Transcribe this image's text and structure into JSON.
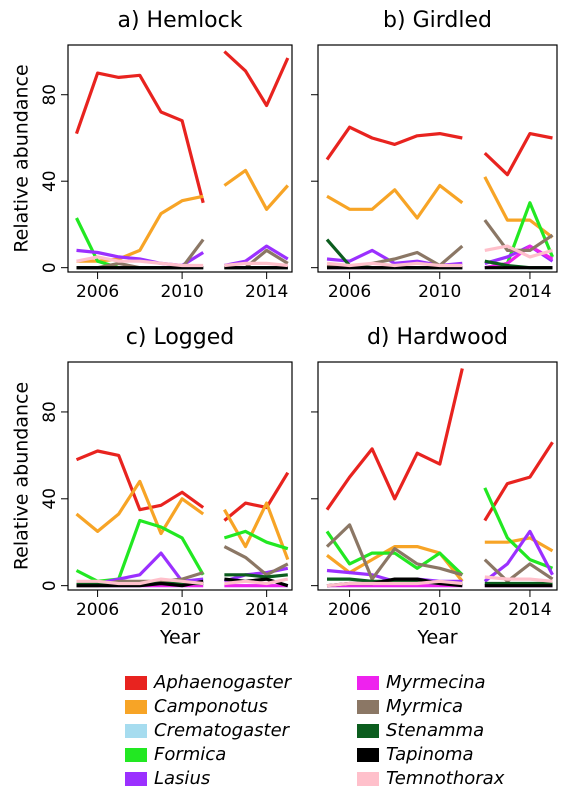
{
  "chart_data": {
    "type": "line",
    "ylabel": "Relative abundance",
    "xlabel": "Year",
    "x": [
      2005,
      2006,
      2007,
      2008,
      2009,
      2010,
      2011
    ],
    "x2": [
      2012,
      2013,
      2014,
      2015
    ],
    "xlim": [
      2004.6,
      2015.2
    ],
    "xticks": [
      2006,
      2010,
      2014
    ],
    "ylim": [
      -2,
      103
    ],
    "yticks": [
      0,
      40,
      80
    ],
    "series": [
      {
        "name": "Aphaenogaster",
        "color": "#e8231f"
      },
      {
        "name": "Camponotus",
        "color": "#f7a426"
      },
      {
        "name": "Crematogaster",
        "color": "#a6dcef"
      },
      {
        "name": "Formica",
        "color": "#22e822"
      },
      {
        "name": "Lasius",
        "color": "#9b30ff"
      },
      {
        "name": "Myrmecina",
        "color": "#ee22ee"
      },
      {
        "name": "Myrmica",
        "color": "#8b7765"
      },
      {
        "name": "Stenamma",
        "color": "#0b5d1e"
      },
      {
        "name": "Tapinoma",
        "color": "#000000"
      },
      {
        "name": "Temnothorax",
        "color": "#ffc0cb"
      }
    ],
    "panels": [
      {
        "title": "a) Hemlock",
        "values": [
          [
            62,
            90,
            88,
            89,
            72,
            68,
            30
          ],
          [
            3,
            3,
            4,
            8,
            25,
            31,
            33
          ],
          [
            0,
            0,
            0,
            0,
            0,
            0,
            0
          ],
          [
            23,
            3,
            0,
            0,
            0,
            0,
            0
          ],
          [
            8,
            7,
            5,
            4,
            2,
            1,
            7
          ],
          [
            0,
            0,
            0,
            0,
            0,
            0,
            0
          ],
          [
            0,
            0,
            2,
            0,
            0,
            0,
            13
          ],
          [
            0,
            0,
            0,
            0,
            0,
            0,
            0
          ],
          [
            0,
            0,
            0,
            0,
            0,
            0,
            0
          ],
          [
            3,
            5,
            3,
            3,
            2,
            1,
            1
          ]
        ],
        "values2": [
          [
            100,
            91,
            75,
            97
          ],
          [
            38,
            45,
            27,
            38
          ],
          [
            0,
            0,
            0,
            0
          ],
          [
            0,
            0,
            0,
            0
          ],
          [
            1,
            3,
            10,
            4
          ],
          [
            0,
            0,
            0,
            0
          ],
          [
            0,
            0,
            8,
            2
          ],
          [
            0,
            0,
            0,
            0
          ],
          [
            0,
            0,
            0,
            0
          ],
          [
            1,
            2,
            2,
            1
          ]
        ]
      },
      {
        "title": "b) Girdled",
        "values": [
          [
            50,
            65,
            60,
            57,
            61,
            62,
            60
          ],
          [
            33,
            27,
            27,
            36,
            23,
            38,
            30
          ],
          [
            0,
            0,
            0,
            0,
            0,
            0,
            0
          ],
          [
            0,
            0,
            0,
            0,
            0,
            0,
            0
          ],
          [
            4,
            3,
            8,
            2,
            3,
            1,
            2
          ],
          [
            0,
            0,
            0,
            0,
            0,
            0,
            0
          ],
          [
            1,
            0,
            2,
            4,
            7,
            1,
            10
          ],
          [
            13,
            1,
            0,
            0,
            0,
            0,
            0
          ],
          [
            0,
            0,
            0,
            0,
            0,
            0,
            0
          ],
          [
            2,
            1,
            2,
            1,
            2,
            1,
            1
          ]
        ],
        "values2": [
          [
            53,
            43,
            62,
            60
          ],
          [
            42,
            22,
            22,
            14
          ],
          [
            0,
            0,
            0,
            0
          ],
          [
            0,
            2,
            30,
            5
          ],
          [
            2,
            5,
            10,
            3
          ],
          [
            0,
            2,
            10,
            4
          ],
          [
            22,
            8,
            8,
            15
          ],
          [
            3,
            1,
            0,
            0
          ],
          [
            0,
            0,
            0,
            0
          ],
          [
            8,
            10,
            5,
            8
          ]
        ]
      },
      {
        "title": "c) Logged",
        "values": [
          [
            58,
            62,
            60,
            35,
            37,
            43,
            36
          ],
          [
            33,
            25,
            33,
            48,
            24,
            40,
            33
          ],
          [
            0,
            0,
            0,
            0,
            0,
            0,
            0
          ],
          [
            7,
            2,
            3,
            30,
            27,
            22,
            5
          ],
          [
            1,
            1,
            3,
            5,
            15,
            2,
            3
          ],
          [
            0,
            0,
            0,
            0,
            0,
            0,
            0
          ],
          [
            0,
            0,
            2,
            2,
            2,
            3,
            6
          ],
          [
            1,
            1,
            1,
            1,
            1,
            1,
            1
          ],
          [
            0,
            0,
            0,
            0,
            1,
            0,
            2
          ],
          [
            2,
            2,
            1,
            1,
            3,
            2,
            1
          ]
        ],
        "values2": [
          [
            30,
            38,
            36,
            52
          ],
          [
            35,
            18,
            38,
            12
          ],
          [
            0,
            0,
            0,
            0
          ],
          [
            22,
            25,
            20,
            17
          ],
          [
            2,
            5,
            6,
            8
          ],
          [
            0,
            0,
            0,
            0
          ],
          [
            18,
            13,
            5,
            10
          ],
          [
            5,
            5,
            4,
            5
          ],
          [
            3,
            2,
            3,
            0
          ],
          [
            1,
            2,
            1,
            3
          ]
        ]
      },
      {
        "title": "d) Hardwood",
        "values": [
          [
            35,
            50,
            63,
            40,
            61,
            56,
            100
          ],
          [
            14,
            6,
            12,
            18,
            18,
            15,
            2
          ],
          [
            0,
            0,
            0,
            0,
            0,
            0,
            0
          ],
          [
            25,
            10,
            15,
            15,
            8,
            15,
            5
          ],
          [
            7,
            6,
            5,
            2,
            3,
            2,
            2
          ],
          [
            0,
            0,
            0,
            0,
            0,
            0,
            0
          ],
          [
            18,
            28,
            3,
            17,
            10,
            8,
            5
          ],
          [
            3,
            3,
            2,
            2,
            2,
            1,
            1
          ],
          [
            0,
            1,
            1,
            3,
            3,
            1,
            0
          ],
          [
            0,
            1,
            1,
            1,
            1,
            2,
            1
          ]
        ],
        "values2": [
          [
            30,
            47,
            50,
            66
          ],
          [
            20,
            20,
            22,
            16
          ],
          [
            0,
            0,
            0,
            0
          ],
          [
            45,
            22,
            12,
            8
          ],
          [
            2,
            10,
            25,
            5
          ],
          [
            0,
            0,
            0,
            0
          ],
          [
            12,
            2,
            10,
            3
          ],
          [
            1,
            1,
            1,
            1
          ],
          [
            0,
            0,
            0,
            0
          ],
          [
            4,
            3,
            3,
            2
          ]
        ]
      }
    ]
  }
}
